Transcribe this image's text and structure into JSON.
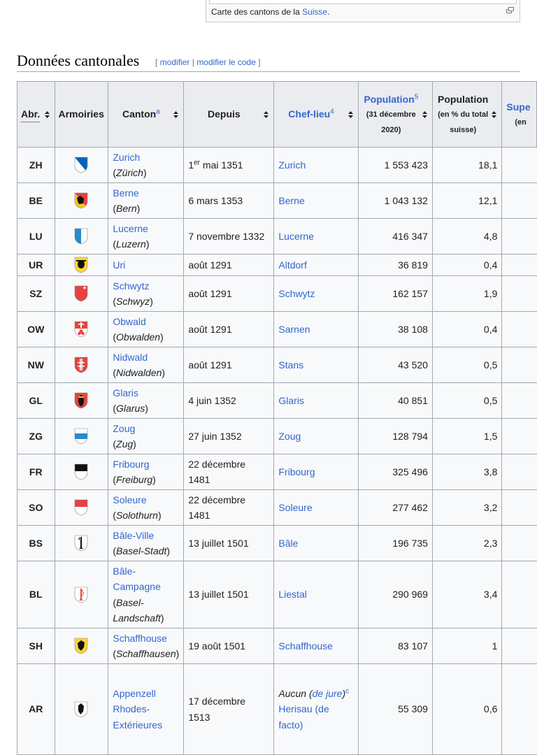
{
  "thumb": {
    "caption_prefix": "Carte des cantons de la ",
    "caption_link": "Suisse",
    "caption_suffix": "."
  },
  "section": {
    "title": "Données cantonales",
    "edit_open": "[",
    "edit_label": "modifier",
    "edit_sep": "|",
    "edit_code_label": "modifier le code",
    "edit_close": "]"
  },
  "table": {
    "headers": {
      "abr": "Abr.",
      "armoiries": "Armoiries",
      "canton": "Canton",
      "canton_note": "a",
      "depuis": "Depuis",
      "chef_lieu": "Chef-lieu",
      "chef_lieu_note": "4",
      "population": "Population",
      "population_note": "5",
      "population_sub": "(31 décembre 2020)",
      "population_pct": "Population",
      "population_pct_sub": "(en % du total suisse)",
      "superficie": "Supe",
      "superficie_sub": "(en"
    },
    "rows": [
      {
        "abr": "ZH",
        "canton": "Zurich",
        "canton_local": "Zürich",
        "depuis": "mai 1351",
        "depuis_prefix": "1",
        "depuis_sup": "er",
        "chef_lieu": "Zurich",
        "population": "1 553 423",
        "pct": "18,1",
        "flag": "zh-flag-icon"
      },
      {
        "abr": "BE",
        "canton": "Berne",
        "canton_local": "Bern",
        "depuis": "6 mars 1353",
        "chef_lieu": "Berne",
        "population": "1 043 132",
        "pct": "12,1",
        "flag": "be-flag-icon"
      },
      {
        "abr": "LU",
        "canton": "Lucerne",
        "canton_local": "Luzern",
        "depuis": "7 novembre 1332",
        "chef_lieu": "Lucerne",
        "population": "416 347",
        "pct": "4,8",
        "flag": "lu-flag-icon"
      },
      {
        "abr": "UR",
        "canton": "Uri",
        "canton_local": "",
        "depuis": "août 1291",
        "chef_lieu": "Altdorf",
        "population": "36 819",
        "pct": "0,4",
        "flag": "ur-flag-icon"
      },
      {
        "abr": "SZ",
        "canton": "Schwytz",
        "canton_local": "Schwyz",
        "depuis": "août 1291",
        "chef_lieu": "Schwytz",
        "population": "162 157",
        "pct": "1,9",
        "flag": "sz-flag-icon"
      },
      {
        "abr": "OW",
        "canton": "Obwald",
        "canton_local": "Obwalden",
        "depuis": "août 1291",
        "chef_lieu": "Sarnen",
        "population": "38 108",
        "pct": "0,4",
        "flag": "ow-flag-icon"
      },
      {
        "abr": "NW",
        "canton": "Nidwald",
        "canton_local": "Nidwalden",
        "depuis": "août 1291",
        "chef_lieu": "Stans",
        "population": "43 520",
        "pct": "0,5",
        "flag": "nw-flag-icon"
      },
      {
        "abr": "GL",
        "canton": "Glaris",
        "canton_local": "Glarus",
        "depuis": "4 juin 1352",
        "chef_lieu": "Glaris",
        "population": "40 851",
        "pct": "0,5",
        "flag": "gl-flag-icon"
      },
      {
        "abr": "ZG",
        "canton": "Zoug",
        "canton_local": "Zug",
        "depuis": "27 juin 1352",
        "chef_lieu": "Zoug",
        "population": "128 794",
        "pct": "1,5",
        "flag": "zg-flag-icon"
      },
      {
        "abr": "FR",
        "canton": "Fribourg",
        "canton_local": "Freiburg",
        "depuis": "22 décembre 1481",
        "chef_lieu": "Fribourg",
        "population": "325 496",
        "pct": "3,8",
        "flag": "fr-flag-icon"
      },
      {
        "abr": "SO",
        "canton": "Soleure",
        "canton_local": "Solothurn",
        "depuis": "22 décembre 1481",
        "chef_lieu": "Soleure",
        "population": "277 462",
        "pct": "3,2",
        "flag": "so-flag-icon"
      },
      {
        "abr": "BS",
        "canton": "Bâle-Ville",
        "canton_local": "Basel-Stadt",
        "depuis": "13 juillet 1501",
        "chef_lieu": "Bâle",
        "population": "196 735",
        "pct": "2,3",
        "flag": "bs-flag-icon"
      },
      {
        "abr": "BL",
        "canton": "Bâle-Campagne",
        "canton_local": "Basel-Landschaft",
        "depuis": "13 juillet 1501",
        "chef_lieu": "Liestal",
        "population": "290 969",
        "pct": "3,4",
        "flag": "bl-flag-icon"
      },
      {
        "abr": "SH",
        "canton": "Schaffhouse",
        "canton_local": "Schaffhausen",
        "depuis": "19 août 1501",
        "chef_lieu": "Schaffhouse",
        "population": "83 107",
        "pct": "1",
        "flag": "sh-flag-icon"
      },
      {
        "abr": "AR",
        "canton": "Appenzell Rhodes-Extérieures",
        "canton_local": "",
        "depuis": "17 décembre 1513",
        "chef_lieu_italic": "Aucun",
        "chef_lieu_open": "(",
        "chef_lieu_link": "de jure",
        "chef_lieu_close": ")",
        "chef_lieu_note": "c",
        "chef_lieu_2": "Herisau (de facto)",
        "population": "55 309",
        "pct": "0,6",
        "flag": "ar-flag-icon"
      }
    ]
  },
  "colors": {
    "link": "#3366cc",
    "header_bg": "#eaecf0",
    "row_bg": "#f8f9fa",
    "border": "#a2a9b1"
  }
}
